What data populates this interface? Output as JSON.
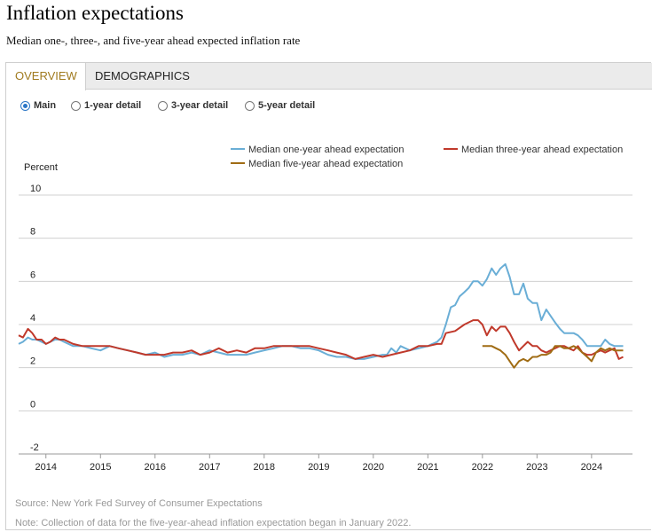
{
  "header": {
    "title": "Inflation expectations",
    "subtitle": "Median one-, three-, and five-year ahead expected inflation rate"
  },
  "tabs": [
    {
      "label": "OVERVIEW",
      "active": true
    },
    {
      "label": "DEMOGRAPHICS",
      "active": false
    }
  ],
  "views": [
    {
      "label": "Main",
      "selected": true
    },
    {
      "label": "1-year detail",
      "selected": false
    },
    {
      "label": "3-year detail",
      "selected": false
    },
    {
      "label": "5-year detail",
      "selected": false
    }
  ],
  "footer": {
    "source": "Source: New York Fed Survey of Consumer Expectations",
    "note": "Note: Collection of data for the five-year-ahead inflation expectation began in January 2022."
  },
  "chart_data": {
    "type": "line",
    "title": "Inflation expectations",
    "ylabel": "Percent",
    "xlabel": "",
    "ylim": [
      -2,
      10
    ],
    "yticks": [
      -2,
      0,
      2,
      4,
      6,
      8,
      10
    ],
    "xlim": [
      2013.5,
      2024.75
    ],
    "xticks": [
      2014,
      2015,
      2016,
      2017,
      2018,
      2019,
      2020,
      2021,
      2022,
      2023,
      2024
    ],
    "grid": true,
    "legend_position": "top",
    "series": [
      {
        "name": "Median one-year ahead expectation",
        "color": "#6aaed6",
        "x": [
          2013.5,
          2013.58,
          2013.67,
          2013.75,
          2013.83,
          2013.92,
          2014.0,
          2014.08,
          2014.17,
          2014.25,
          2014.33,
          2014.5,
          2014.67,
          2014.83,
          2015.0,
          2015.17,
          2015.33,
          2015.5,
          2015.67,
          2015.83,
          2016.0,
          2016.17,
          2016.33,
          2016.5,
          2016.67,
          2016.83,
          2017.0,
          2017.17,
          2017.33,
          2017.5,
          2017.67,
          2017.83,
          2018.0,
          2018.17,
          2018.33,
          2018.5,
          2018.67,
          2018.83,
          2019.0,
          2019.17,
          2019.33,
          2019.5,
          2019.67,
          2019.83,
          2020.0,
          2020.17,
          2020.25,
          2020.33,
          2020.42,
          2020.5,
          2020.67,
          2020.83,
          2021.0,
          2021.08,
          2021.17,
          2021.25,
          2021.33,
          2021.42,
          2021.5,
          2021.58,
          2021.67,
          2021.75,
          2021.83,
          2021.92,
          2022.0,
          2022.08,
          2022.17,
          2022.25,
          2022.33,
          2022.42,
          2022.5,
          2022.58,
          2022.67,
          2022.75,
          2022.83,
          2022.92,
          2023.0,
          2023.08,
          2023.17,
          2023.25,
          2023.33,
          2023.42,
          2023.5,
          2023.58,
          2023.67,
          2023.75,
          2023.83,
          2023.92,
          2024.0,
          2024.08,
          2024.17,
          2024.25,
          2024.33,
          2024.42,
          2024.5,
          2024.58
        ],
        "values": [
          3.1,
          3.2,
          3.4,
          3.3,
          3.3,
          3.2,
          3.1,
          3.2,
          3.3,
          3.3,
          3.2,
          3.0,
          3.0,
          2.9,
          2.8,
          3.0,
          2.9,
          2.8,
          2.7,
          2.6,
          2.7,
          2.5,
          2.6,
          2.6,
          2.7,
          2.6,
          2.8,
          2.7,
          2.6,
          2.6,
          2.6,
          2.7,
          2.8,
          2.9,
          3.0,
          3.0,
          2.9,
          2.9,
          2.8,
          2.6,
          2.5,
          2.5,
          2.4,
          2.4,
          2.5,
          2.6,
          2.6,
          2.9,
          2.7,
          3.0,
          2.8,
          2.9,
          3.0,
          3.1,
          3.2,
          3.4,
          4.0,
          4.8,
          4.9,
          5.3,
          5.5,
          5.7,
          6.0,
          6.0,
          5.8,
          6.1,
          6.6,
          6.3,
          6.6,
          6.8,
          6.2,
          5.4,
          5.4,
          5.9,
          5.2,
          5.0,
          5.0,
          4.2,
          4.7,
          4.4,
          4.1,
          3.8,
          3.6,
          3.6,
          3.6,
          3.5,
          3.3,
          3.0,
          3.0,
          3.0,
          3.0,
          3.3,
          3.1,
          3.0,
          3.0,
          3.0
        ]
      },
      {
        "name": "Median three-year ahead expectation",
        "color": "#c0392b",
        "x": [
          2013.5,
          2013.58,
          2013.67,
          2013.75,
          2013.83,
          2013.92,
          2014.0,
          2014.08,
          2014.17,
          2014.25,
          2014.33,
          2014.5,
          2014.67,
          2014.83,
          2015.0,
          2015.17,
          2015.33,
          2015.5,
          2015.67,
          2015.83,
          2016.0,
          2016.17,
          2016.33,
          2016.5,
          2016.67,
          2016.83,
          2017.0,
          2017.17,
          2017.33,
          2017.5,
          2017.67,
          2017.83,
          2018.0,
          2018.17,
          2018.33,
          2018.5,
          2018.67,
          2018.83,
          2019.0,
          2019.17,
          2019.33,
          2019.5,
          2019.67,
          2019.83,
          2020.0,
          2020.17,
          2020.33,
          2020.5,
          2020.67,
          2020.83,
          2021.0,
          2021.17,
          2021.25,
          2021.33,
          2021.5,
          2021.67,
          2021.83,
          2021.92,
          2022.0,
          2022.08,
          2022.17,
          2022.25,
          2022.33,
          2022.42,
          2022.5,
          2022.58,
          2022.67,
          2022.75,
          2022.83,
          2022.92,
          2023.0,
          2023.08,
          2023.17,
          2023.25,
          2023.33,
          2023.42,
          2023.5,
          2023.58,
          2023.67,
          2023.75,
          2023.83,
          2023.92,
          2024.0,
          2024.08,
          2024.17,
          2024.25,
          2024.33,
          2024.42,
          2024.5,
          2024.58
        ],
        "values": [
          3.5,
          3.4,
          3.8,
          3.6,
          3.3,
          3.3,
          3.1,
          3.2,
          3.4,
          3.3,
          3.3,
          3.1,
          3.0,
          3.0,
          3.0,
          3.0,
          2.9,
          2.8,
          2.7,
          2.6,
          2.6,
          2.6,
          2.7,
          2.7,
          2.8,
          2.6,
          2.7,
          2.9,
          2.7,
          2.8,
          2.7,
          2.9,
          2.9,
          3.0,
          3.0,
          3.0,
          3.0,
          3.0,
          2.9,
          2.8,
          2.7,
          2.6,
          2.4,
          2.5,
          2.6,
          2.5,
          2.6,
          2.7,
          2.8,
          3.0,
          3.0,
          3.1,
          3.1,
          3.6,
          3.7,
          4.0,
          4.2,
          4.2,
          4.0,
          3.5,
          3.9,
          3.7,
          3.9,
          3.9,
          3.6,
          3.2,
          2.8,
          3.0,
          3.2,
          3.0,
          3.0,
          2.8,
          2.7,
          2.8,
          2.9,
          3.0,
          3.0,
          2.9,
          2.8,
          3.0,
          2.7,
          2.6,
          2.6,
          2.7,
          2.8,
          2.7,
          2.8,
          2.9,
          2.4,
          2.5
        ]
      },
      {
        "name": "Median five-year ahead expectation",
        "color": "#a06c14",
        "x": [
          2022.0,
          2022.08,
          2022.17,
          2022.25,
          2022.33,
          2022.42,
          2022.5,
          2022.58,
          2022.67,
          2022.75,
          2022.83,
          2022.92,
          2023.0,
          2023.08,
          2023.17,
          2023.25,
          2023.33,
          2023.42,
          2023.5,
          2023.58,
          2023.67,
          2023.75,
          2023.83,
          2023.92,
          2024.0,
          2024.08,
          2024.17,
          2024.25,
          2024.33,
          2024.42,
          2024.5,
          2024.58
        ],
        "values": [
          3.0,
          3.0,
          3.0,
          2.9,
          2.8,
          2.6,
          2.3,
          2.0,
          2.3,
          2.4,
          2.3,
          2.5,
          2.5,
          2.6,
          2.6,
          2.7,
          3.0,
          3.0,
          2.9,
          2.9,
          3.0,
          2.9,
          2.7,
          2.5,
          2.3,
          2.7,
          2.9,
          2.8,
          2.9,
          2.8,
          2.8,
          2.8
        ]
      }
    ]
  }
}
